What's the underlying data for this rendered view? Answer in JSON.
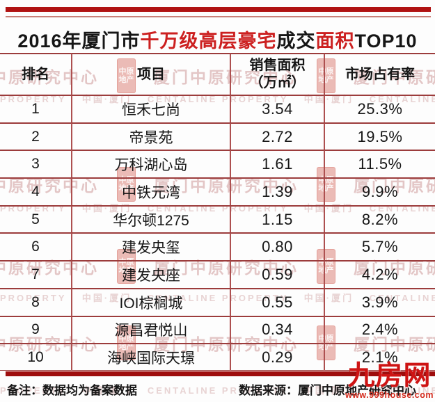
{
  "title": {
    "full": "2016年厦门市千万级高层豪宅成交面积TOP10",
    "segments": [
      {
        "text": "2016年厦门市",
        "color": "#161616"
      },
      {
        "text": "千万级高层豪宅",
        "color": "#cc2020"
      },
      {
        "text": "成交",
        "color": "#161616"
      },
      {
        "text": "面积",
        "color": "#cc2020"
      },
      {
        "text": "TOP10",
        "color": "#161616"
      }
    ]
  },
  "table": {
    "headers": {
      "rank": "排名",
      "project": "项目",
      "area": "销售面积\n（万㎡）",
      "share": "市场占有率"
    },
    "rows": [
      {
        "rank": "1",
        "project": "恒禾七尚",
        "area": "3.54",
        "share": "25.3%"
      },
      {
        "rank": "2",
        "project": "帝景苑",
        "area": "2.72",
        "share": "19.5%"
      },
      {
        "rank": "3",
        "project": "万科湖心岛",
        "area": "1.61",
        "share": "11.5%"
      },
      {
        "rank": "4",
        "project": "中铁元湾",
        "area": "1.39",
        "share": "9.9%"
      },
      {
        "rank": "5",
        "project": "华尔顿1275",
        "area": "1.15",
        "share": "8.2%"
      },
      {
        "rank": "6",
        "project": "建发央玺",
        "area": "0.80",
        "share": "5.7%"
      },
      {
        "rank": "7",
        "project": "建发央座",
        "area": "0.59",
        "share": "4.2%"
      },
      {
        "rank": "8",
        "project": "IOI棕榈城",
        "area": "0.55",
        "share": "3.9%"
      },
      {
        "rank": "9",
        "project": "源昌君悦山",
        "area": "0.34",
        "share": "2.4%"
      },
      {
        "rank": "10",
        "project": "海峡国际天璟",
        "area": "0.29",
        "share": "2.1%"
      }
    ]
  },
  "chart_data": {
    "type": "table",
    "title": "2016年厦门市千万级高层豪宅成交面积TOP10",
    "columns": [
      "排名",
      "项目",
      "销售面积（万㎡）",
      "市场占有率"
    ],
    "rows": [
      [
        1,
        "恒禾七尚",
        3.54,
        "25.3%"
      ],
      [
        2,
        "帝景苑",
        2.72,
        "19.5%"
      ],
      [
        3,
        "万科湖心岛",
        1.61,
        "11.5%"
      ],
      [
        4,
        "中铁元湾",
        1.39,
        "9.9%"
      ],
      [
        5,
        "华尔顿1275",
        1.15,
        "8.2%"
      ],
      [
        6,
        "建发央玺",
        0.8,
        "5.7%"
      ],
      [
        7,
        "建发央座",
        0.59,
        "4.2%"
      ],
      [
        8,
        "IOI棕榈城",
        0.55,
        "3.9%"
      ],
      [
        9,
        "源昌君悦山",
        0.34,
        "2.4%"
      ],
      [
        10,
        "海峡国际天璟",
        0.29,
        "2.1%"
      ]
    ]
  },
  "footer": {
    "note": "备注：数据均为备案数据",
    "source": "数据来源：厦门中原地产研究中心"
  },
  "logo": {
    "name": "九房网",
    "url": "www.999house.com"
  },
  "watermark": {
    "line_a_segments": [
      "中原研究中心",
      "厦门中原研究中心",
      "厦门中原研究"
    ],
    "line_b": "PROPERTY　 中国·厦门 　CENTALINE PROPERTY　 中国·厦门 　CENTALINE PROPERTY",
    "seal_top": "中原",
    "seal_bottom": "地产"
  },
  "colors": {
    "top_bar": "#b01212",
    "bottom_bar": "#9e0d0d",
    "grid_line": "#9c3c3c",
    "column_line": "#ad5050",
    "title_accent": "#cc2020",
    "logo_red": "#ce1414"
  }
}
